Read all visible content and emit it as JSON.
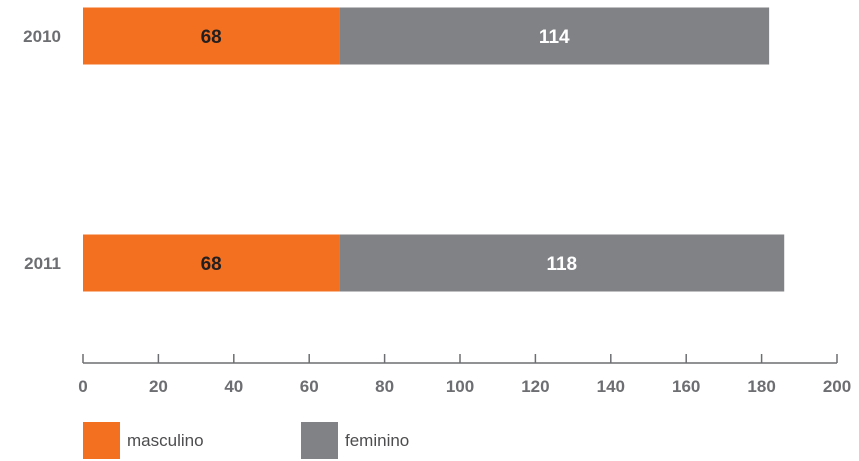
{
  "chart_data": {
    "type": "bar",
    "orientation": "horizontal",
    "stacked": true,
    "categories": [
      "2010",
      "2011"
    ],
    "series": [
      {
        "name": "masculino",
        "values": [
          68,
          68
        ],
        "color": "#f37021"
      },
      {
        "name": "feminino",
        "values": [
          114,
          118
        ],
        "color": "#808285"
      }
    ],
    "xlim": [
      0,
      200
    ],
    "xticks": [
      0,
      20,
      40,
      60,
      80,
      100,
      120,
      140,
      160,
      180,
      200
    ],
    "grid": false,
    "legend_position": "bottom-left"
  }
}
